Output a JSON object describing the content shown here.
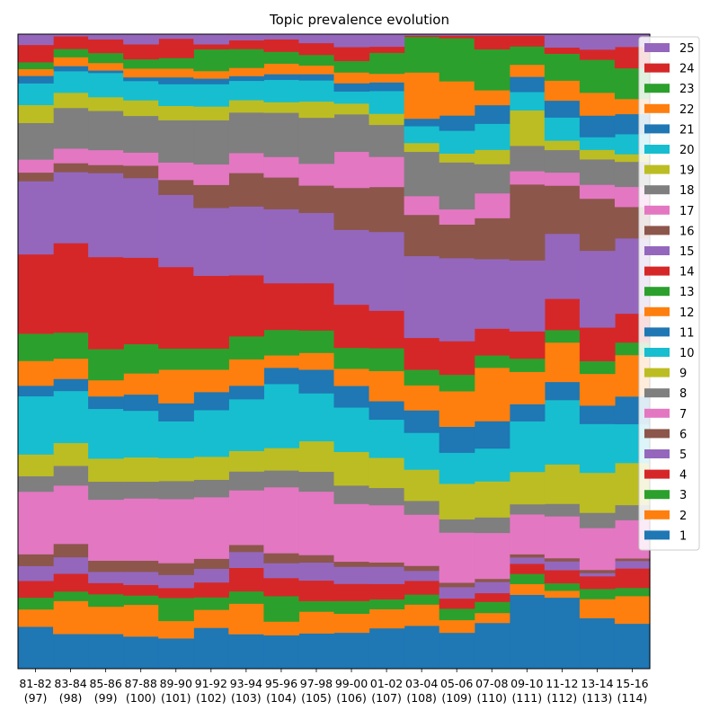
{
  "chart_data": {
    "type": "area",
    "title": "Topic prevalence evolution",
    "xlabel": "",
    "ylabel": "",
    "ylim": [
      0,
      1
    ],
    "categories": [
      {
        "period": "81-82",
        "count": "(97)"
      },
      {
        "period": "83-84",
        "count": "(98)"
      },
      {
        "period": "85-86",
        "count": "(99)"
      },
      {
        "period": "87-88",
        "count": "(100)"
      },
      {
        "period": "89-90",
        "count": "(101)"
      },
      {
        "period": "91-92",
        "count": "(102)"
      },
      {
        "period": "93-94",
        "count": "(103)"
      },
      {
        "period": "95-96",
        "count": "(104)"
      },
      {
        "period": "97-98",
        "count": "(105)"
      },
      {
        "period": "99-00",
        "count": "(106)"
      },
      {
        "period": "01-02",
        "count": "(107)"
      },
      {
        "period": "03-04",
        "count": "(108)"
      },
      {
        "period": "05-06",
        "count": "(109)"
      },
      {
        "period": "07-08",
        "count": "(110)"
      },
      {
        "period": "09-10",
        "count": "(111)"
      },
      {
        "period": "11-12",
        "count": "(112)"
      },
      {
        "period": "13-14",
        "count": "(113)"
      },
      {
        "period": "15-16",
        "count": "(114)"
      }
    ],
    "legend_position": "top-right",
    "series": [
      {
        "name": "1",
        "color": "#1f77b4",
        "values": [
          0.068,
          0.055,
          0.056,
          0.052,
          0.049,
          0.066,
          0.059,
          0.054,
          0.057,
          0.057,
          0.066,
          0.069,
          0.057,
          0.074,
          0.117,
          0.114,
          0.08,
          0.072
        ]
      },
      {
        "name": "2",
        "color": "#ff7f0e",
        "values": [
          0.028,
          0.052,
          0.044,
          0.051,
          0.028,
          0.029,
          0.052,
          0.022,
          0.035,
          0.03,
          0.031,
          0.034,
          0.02,
          0.016,
          0.017,
          0.011,
          0.03,
          0.044
        ]
      },
      {
        "name": "3",
        "color": "#2ca02c",
        "values": [
          0.019,
          0.015,
          0.02,
          0.015,
          0.037,
          0.02,
          0.021,
          0.041,
          0.017,
          0.02,
          0.016,
          0.016,
          0.018,
          0.018,
          0.016,
          0.012,
          0.016,
          0.013
        ]
      },
      {
        "name": "4",
        "color": "#d62728",
        "values": [
          0.027,
          0.028,
          0.018,
          0.017,
          0.016,
          0.024,
          0.04,
          0.029,
          0.033,
          0.027,
          0.025,
          0.022,
          0.016,
          0.014,
          0.016,
          0.021,
          0.02,
          0.031
        ]
      },
      {
        "name": "5",
        "color": "#9467bd",
        "values": [
          0.024,
          0.026,
          0.018,
          0.021,
          0.021,
          0.022,
          0.027,
          0.024,
          0.029,
          0.027,
          0.028,
          0.016,
          0.018,
          0.018,
          0.01,
          0.014,
          0.005,
          0.012
        ]
      },
      {
        "name": "6",
        "color": "#8c564b",
        "values": [
          0.019,
          0.021,
          0.018,
          0.018,
          0.019,
          0.016,
          0.012,
          0.016,
          0.012,
          0.008,
          0.007,
          0.008,
          0.007,
          0.005,
          0.005,
          0.005,
          0.005,
          0.004
        ]
      },
      {
        "name": "7",
        "color": "#e377c2",
        "values": [
          0.101,
          0.092,
          0.098,
          0.1,
          0.103,
          0.099,
          0.093,
          0.106,
          0.102,
          0.091,
          0.093,
          0.082,
          0.079,
          0.074,
          0.063,
          0.067,
          0.066,
          0.061
        ]
      },
      {
        "name": "8",
        "color": "#7f7f7f",
        "values": [
          0.025,
          0.031,
          0.029,
          0.027,
          0.029,
          0.028,
          0.032,
          0.027,
          0.032,
          0.029,
          0.028,
          0.022,
          0.021,
          0.025,
          0.016,
          0.02,
          0.024,
          0.024
        ]
      },
      {
        "name": "9",
        "color": "#bcbd22",
        "values": [
          0.035,
          0.036,
          0.037,
          0.039,
          0.037,
          0.037,
          0.035,
          0.036,
          0.049,
          0.053,
          0.049,
          0.05,
          0.056,
          0.058,
          0.051,
          0.063,
          0.063,
          0.067
        ]
      },
      {
        "name": "10",
        "color": "#17becf",
        "values": [
          0.094,
          0.082,
          0.08,
          0.075,
          0.059,
          0.075,
          0.088,
          0.103,
          0.077,
          0.07,
          0.062,
          0.059,
          0.049,
          0.053,
          0.08,
          0.103,
          0.077,
          0.062
        ]
      },
      {
        "name": "11",
        "color": "#1f77b4",
        "values": [
          0.017,
          0.019,
          0.02,
          0.026,
          0.029,
          0.029,
          0.023,
          0.026,
          0.038,
          0.034,
          0.03,
          0.036,
          0.041,
          0.044,
          0.027,
          0.029,
          0.029,
          0.044
        ]
      },
      {
        "name": "12",
        "color": "#ff7f0e",
        "values": [
          0.04,
          0.032,
          0.026,
          0.034,
          0.054,
          0.036,
          0.045,
          0.02,
          0.027,
          0.027,
          0.049,
          0.04,
          0.056,
          0.086,
          0.051,
          0.063,
          0.05,
          0.066
        ]
      },
      {
        "name": "13",
        "color": "#2ca02c",
        "values": [
          0.044,
          0.041,
          0.05,
          0.047,
          0.034,
          0.034,
          0.039,
          0.041,
          0.036,
          0.033,
          0.037,
          0.025,
          0.026,
          0.02,
          0.021,
          0.02,
          0.02,
          0.02
        ]
      },
      {
        "name": "14",
        "color": "#d62728",
        "values": [
          0.128,
          0.141,
          0.148,
          0.139,
          0.131,
          0.117,
          0.104,
          0.075,
          0.076,
          0.068,
          0.061,
          0.051,
          0.053,
          0.043,
          0.043,
          0.05,
          0.053,
          0.046
        ]
      },
      {
        "name": "15",
        "color": "#9467bd",
        "values": [
          0.118,
          0.112,
          0.135,
          0.128,
          0.116,
          0.109,
          0.117,
          0.119,
          0.113,
          0.118,
          0.128,
          0.131,
          0.131,
          0.112,
          0.112,
          0.104,
          0.121,
          0.12
        ]
      },
      {
        "name": "16",
        "color": "#8c564b",
        "values": [
          0.014,
          0.014,
          0.013,
          0.02,
          0.024,
          0.037,
          0.057,
          0.051,
          0.044,
          0.066,
          0.073,
          0.066,
          0.053,
          0.066,
          0.12,
          0.077,
          0.082,
          0.05
        ]
      },
      {
        "name": "17",
        "color": "#e377c2",
        "values": [
          0.021,
          0.023,
          0.024,
          0.021,
          0.028,
          0.033,
          0.034,
          0.033,
          0.035,
          0.057,
          0.049,
          0.03,
          0.024,
          0.04,
          0.021,
          0.021,
          0.022,
          0.032
        ]
      },
      {
        "name": "18",
        "color": "#7f7f7f",
        "values": [
          0.059,
          0.064,
          0.063,
          0.059,
          0.068,
          0.071,
          0.069,
          0.071,
          0.074,
          0.059,
          0.052,
          0.071,
          0.074,
          0.047,
          0.04,
          0.036,
          0.04,
          0.04
        ]
      },
      {
        "name": "19",
        "color": "#bcbd22",
        "values": [
          0.029,
          0.024,
          0.022,
          0.025,
          0.023,
          0.022,
          0.021,
          0.017,
          0.026,
          0.017,
          0.018,
          0.014,
          0.014,
          0.023,
          0.056,
          0.015,
          0.015,
          0.012
        ]
      },
      {
        "name": "20",
        "color": "#17becf",
        "values": [
          0.035,
          0.034,
          0.039,
          0.031,
          0.035,
          0.036,
          0.033,
          0.036,
          0.034,
          0.019,
          0.037,
          0.027,
          0.036,
          0.042,
          0.029,
          0.037,
          0.02,
          0.032
        ]
      },
      {
        "name": "21",
        "color": "#1f77b4",
        "values": [
          0.012,
          0.008,
          0.004,
          0.006,
          0.011,
          0.009,
          0.008,
          0.009,
          0.01,
          0.013,
          0.014,
          0.012,
          0.024,
          0.03,
          0.024,
          0.027,
          0.034,
          0.032
        ]
      },
      {
        "name": "22",
        "color": "#ff7f0e",
        "values": [
          0.011,
          0.014,
          0.012,
          0.014,
          0.014,
          0.012,
          0.014,
          0.017,
          0.014,
          0.017,
          0.014,
          0.074,
          0.054,
          0.024,
          0.019,
          0.032,
          0.036,
          0.024
        ]
      },
      {
        "name": "23",
        "color": "#2ca02c",
        "values": [
          0.011,
          0.013,
          0.016,
          0.015,
          0.017,
          0.035,
          0.032,
          0.019,
          0.017,
          0.018,
          0.034,
          0.057,
          0.068,
          0.066,
          0.029,
          0.043,
          0.052,
          0.049
        ]
      },
      {
        "name": "24",
        "color": "#d62728",
        "values": [
          0.028,
          0.02,
          0.022,
          0.024,
          0.031,
          0.008,
          0.015,
          0.02,
          0.019,
          0.022,
          0.01,
          0.002,
          0.004,
          0.022,
          0.017,
          0.01,
          0.016,
          0.034
        ]
      },
      {
        "name": "25",
        "color": "#9467bd",
        "values": [
          0.017,
          0.003,
          0.008,
          0.016,
          0.007,
          0.016,
          0.01,
          0.008,
          0.014,
          0.02,
          0.02,
          0.002,
          0.002,
          0.002,
          0.002,
          0.021,
          0.024,
          0.02
        ]
      }
    ]
  }
}
